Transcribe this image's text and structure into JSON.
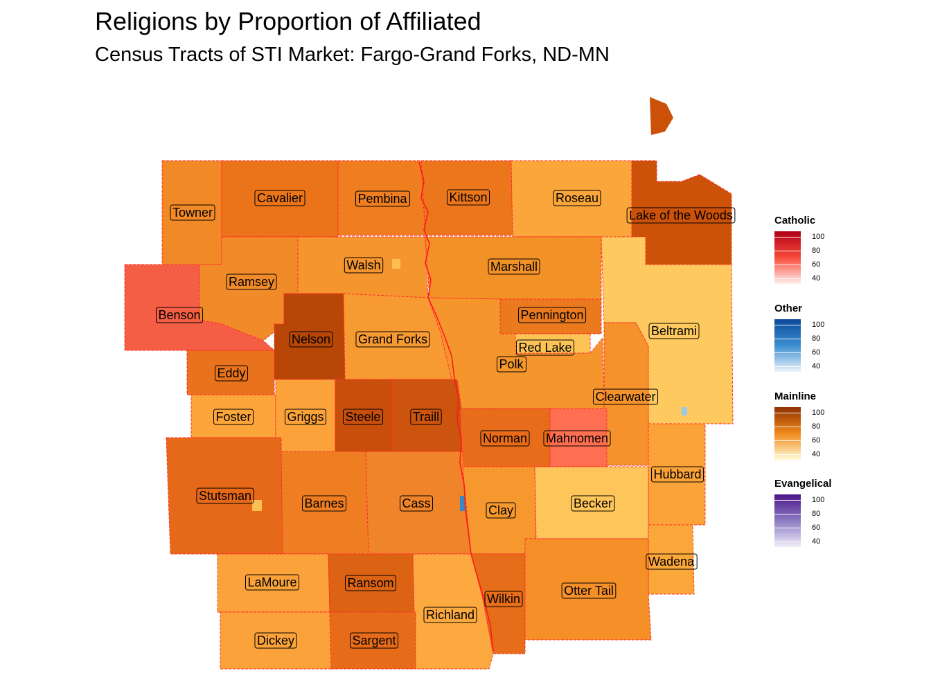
{
  "title": "Religions by Proportion of Affiliated",
  "subtitle": "Census Tracts of STI Market: Fargo-Grand Forks, ND-MN",
  "legend": [
    {
      "title": "Catholic",
      "colors": [
        "#fff0ee",
        "#f74a3a",
        "#b00018"
      ],
      "ticks": [
        "100",
        "80",
        "60",
        "40"
      ]
    },
    {
      "title": "Other",
      "colors": [
        "#eef4fb",
        "#3b8ed0",
        "#0b4a99"
      ],
      "ticks": [
        "100",
        "80",
        "60",
        "40"
      ]
    },
    {
      "title": "Mainline",
      "colors": [
        "#fffbd6",
        "#f08a1c",
        "#8f2f00"
      ],
      "ticks": [
        "100",
        "80",
        "60",
        "40"
      ]
    },
    {
      "title": "Evangelical",
      "colors": [
        "#f1eef8",
        "#8b7cc3",
        "#4b1587"
      ],
      "ticks": [
        "100",
        "80",
        "60",
        "40"
      ]
    }
  ],
  "counties": [
    {
      "name": "Towner",
      "fill": "#f18a26"
    },
    {
      "name": "Cavalier",
      "fill": "#eb741a"
    },
    {
      "name": "Pembina",
      "fill": "#ee7e1f"
    },
    {
      "name": "Kittson",
      "fill": "#eb761c"
    },
    {
      "name": "Roseau",
      "fill": "#faa63a"
    },
    {
      "name": "Lake of the Woods",
      "fill": "#cc5209"
    },
    {
      "name": "Ramsey",
      "fill": "#f18a28"
    },
    {
      "name": "Benson",
      "fill": "#f45e45"
    },
    {
      "name": "Walsh",
      "fill": "#f5952d"
    },
    {
      "name": "Marshall",
      "fill": "#f29126"
    },
    {
      "name": "Nelson",
      "fill": "#b84707"
    },
    {
      "name": "Grand Forks",
      "fill": "#f79a32"
    },
    {
      "name": "Pennington",
      "fill": "#eb7a1f"
    },
    {
      "name": "Red Lake",
      "fill": "#fcc457"
    },
    {
      "name": "Polk",
      "fill": "#f5962d"
    },
    {
      "name": "Beltrami",
      "fill": "#fec95e"
    },
    {
      "name": "Eddy",
      "fill": "#e9731c"
    },
    {
      "name": "Foster",
      "fill": "#fca53a"
    },
    {
      "name": "Griggs",
      "fill": "#fba33a"
    },
    {
      "name": "Steele",
      "fill": "#c84e0b"
    },
    {
      "name": "Traill",
      "fill": "#cc540e"
    },
    {
      "name": "Clearwater",
      "fill": "#f6922b"
    },
    {
      "name": "Norman",
      "fill": "#e96c1a"
    },
    {
      "name": "Mahnomen",
      "fill": "#fd6f50"
    },
    {
      "name": "Hubbard",
      "fill": "#fba338"
    },
    {
      "name": "Stutsman",
      "fill": "#e6691a"
    },
    {
      "name": "Barnes",
      "fill": "#ef7e22"
    },
    {
      "name": "Cass",
      "fill": "#f0842a"
    },
    {
      "name": "Clay",
      "fill": "#f7982f"
    },
    {
      "name": "Becker",
      "fill": "#fec55a"
    },
    {
      "name": "Wadena",
      "fill": "#fca73a"
    },
    {
      "name": "LaMoure",
      "fill": "#fba33a"
    },
    {
      "name": "Ransom",
      "fill": "#dc6214"
    },
    {
      "name": "Richland",
      "fill": "#fcaa40"
    },
    {
      "name": "Wilkin",
      "fill": "#e66d1a"
    },
    {
      "name": "Otter Tail",
      "fill": "#f59028"
    },
    {
      "name": "Dickey",
      "fill": "#fba33a"
    },
    {
      "name": "Sargent",
      "fill": "#e76c1a"
    }
  ]
}
